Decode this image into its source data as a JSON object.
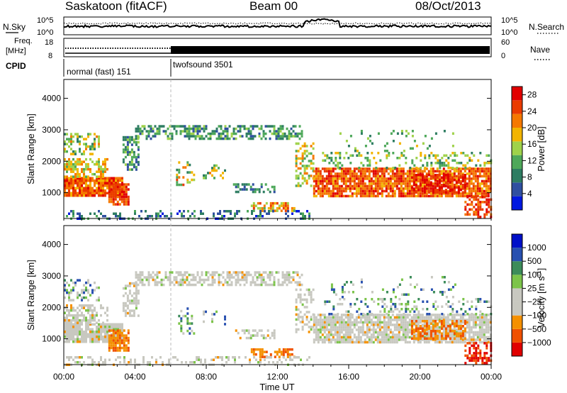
{
  "header": {
    "station": "Saskatoon (fitACF)",
    "beam": "Beam 00",
    "date": "08/Oct/2013"
  },
  "noise_panel": {
    "left_label": "N.Sky",
    "right_label": "N.Search",
    "left_ticks": [
      "10^5",
      "10^0"
    ],
    "right_ticks": [
      "10^5",
      "10^0"
    ]
  },
  "freq_panel": {
    "left_label_1": "Freq.",
    "left_label_2": "[MHz]",
    "right_label": "Nave",
    "left_ticks": [
      "18",
      "8"
    ],
    "right_ticks": [
      "60",
      "0"
    ]
  },
  "cpid": {
    "label": "CPID",
    "segments": [
      {
        "name": "normal (fast) 151",
        "start_hour": 0,
        "end_hour": 6
      },
      {
        "name": "twofsound 3501",
        "start_hour": 6,
        "end_hour": 24
      }
    ]
  },
  "colors": {
    "power_scale": [
      "#0018e0",
      "#2f4fa0",
      "#2e7d62",
      "#4ea85a",
      "#9fd24a",
      "#f2b400",
      "#f57800",
      "#ea3b00",
      "#e10000"
    ],
    "velocity_scale": [
      "#e00000",
      "#f05000",
      "#f59000",
      "#c8c8c0",
      "#c8c8c0",
      "#7cc44a",
      "#3c8c5a",
      "#2850b0",
      "#0010c8"
    ]
  },
  "chart_data": [
    {
      "type": "heatmap",
      "name": "Power",
      "xlabel": "",
      "ylabel": "Slant Range [km]",
      "xlim": [
        0,
        24
      ],
      "ylim": [
        180,
        4600
      ],
      "yticks": [
        1000,
        2000,
        3000,
        4000
      ],
      "colorbar_label": "Power [dB]",
      "colorbar_ticks": [
        "4",
        "8",
        "12",
        "16",
        "20",
        "24",
        "28"
      ],
      "colorbar_range": [
        0,
        30
      ]
    },
    {
      "type": "heatmap",
      "name": "Velocity",
      "xlabel": "Time UT",
      "ylabel": "Slant Range [km]",
      "xlim": [
        0,
        24
      ],
      "ylim": [
        180,
        4600
      ],
      "xticks": [
        "00:00",
        "04:00",
        "08:00",
        "12:00",
        "16:00",
        "20:00",
        "00:00"
      ],
      "yticks": [
        1000,
        2000,
        3000,
        4000
      ],
      "colorbar_label": "Velocity [m s^-1]",
      "colorbar_ticks": [
        "1000",
        "500",
        "100",
        "25",
        "−25",
        "−100",
        "−500",
        "−1000"
      ]
    }
  ]
}
